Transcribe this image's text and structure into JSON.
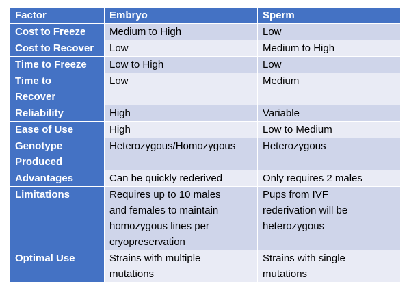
{
  "table": {
    "headers": [
      "Factor",
      "Embryo",
      "Sperm"
    ],
    "rows": [
      {
        "factor": [
          "Cost to Freeze"
        ],
        "embryo": [
          "Medium to High"
        ],
        "sperm": [
          "Low"
        ]
      },
      {
        "factor": [
          "Cost to Recover"
        ],
        "embryo": [
          "Low"
        ],
        "sperm": [
          "Medium to High"
        ]
      },
      {
        "factor": [
          "Time to Freeze"
        ],
        "embryo": [
          "Low to High"
        ],
        "sperm": [
          "Low"
        ]
      },
      {
        "factor": [
          "Time to",
          "Recover"
        ],
        "embryo": [
          "Low"
        ],
        "sperm": [
          "Medium"
        ]
      },
      {
        "factor": [
          "Reliability"
        ],
        "embryo": [
          "High"
        ],
        "sperm": [
          "Variable"
        ]
      },
      {
        "factor": [
          "Ease of Use"
        ],
        "embryo": [
          "High"
        ],
        "sperm": [
          "Low to Medium"
        ]
      },
      {
        "factor": [
          "Genotype",
          "Produced"
        ],
        "embryo": [
          "Heterozygous/Homozygous"
        ],
        "sperm": [
          "Heterozygous"
        ]
      },
      {
        "factor": [
          "Advantages"
        ],
        "embryo": [
          "Can be quickly rederived"
        ],
        "sperm": [
          "Only requires 2 males"
        ]
      },
      {
        "factor": [
          "Limitations"
        ],
        "embryo": [
          "Requires up to 10 males",
          "and females to maintain",
          "homozygous lines per",
          "cryopreservation"
        ],
        "sperm": [
          "Pups from IVF",
          "rederivation will be",
          "heterozygous"
        ]
      },
      {
        "factor": [
          "Optimal Use"
        ],
        "embryo": [
          "Strains with multiple",
          "mutations"
        ],
        "sperm": [
          "Strains with single",
          "mutations"
        ]
      }
    ]
  },
  "colors": {
    "header_bg": "#4472c4",
    "row_odd": "#cfd5ea",
    "row_even": "#e9ebf5"
  }
}
